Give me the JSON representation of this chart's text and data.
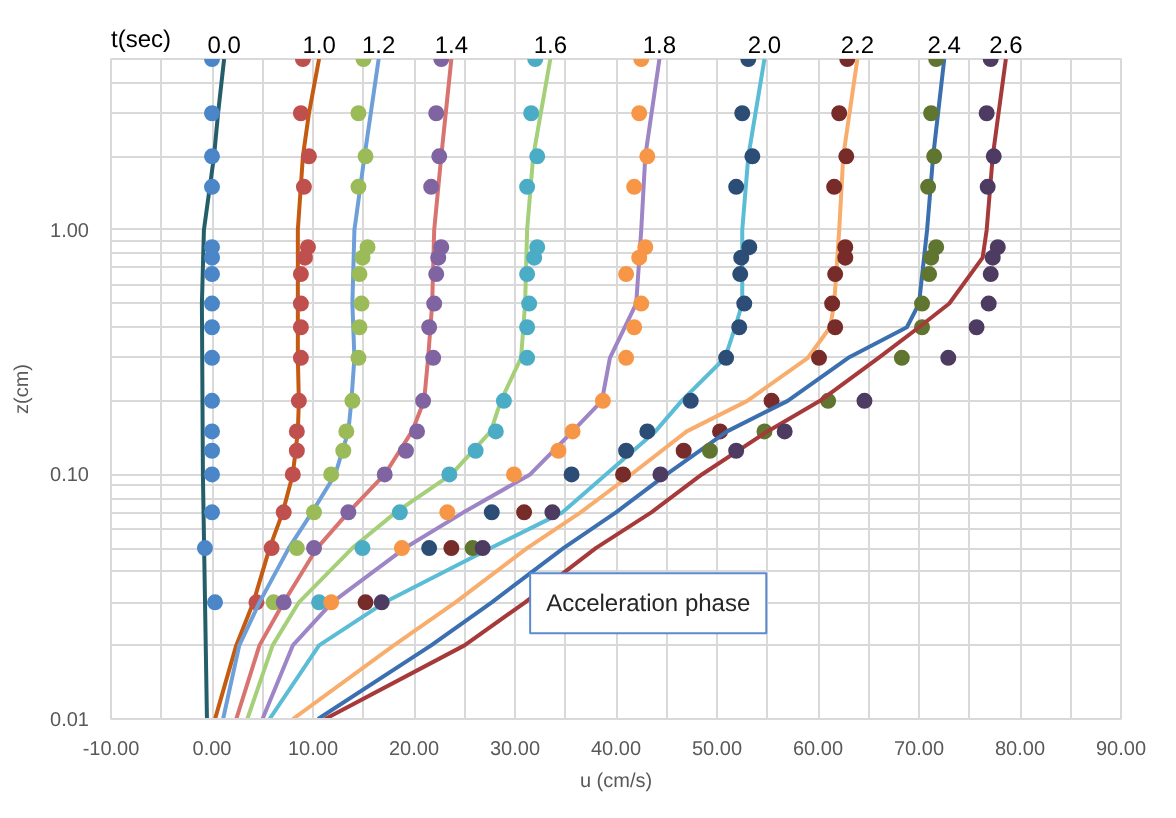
{
  "chart_data": {
    "type": "line",
    "xlabel": "u (cm/s)",
    "ylabel": "z(cm)",
    "log": "y",
    "grid": true,
    "legend": false,
    "annotations": [
      "t(sec)",
      "Acceleration phase"
    ],
    "xlim": [
      -10,
      90
    ],
    "xticks": [
      {
        "value": -10,
        "label": "-10.00"
      },
      {
        "value": -5,
        "label": null
      },
      {
        "value": 0,
        "label": "0.00"
      },
      {
        "value": 5,
        "label": null
      },
      {
        "value": 10,
        "label": "10.00"
      },
      {
        "value": 15,
        "label": null
      },
      {
        "value": 20,
        "label": "20.00"
      },
      {
        "value": 25,
        "label": null
      },
      {
        "value": 30,
        "label": "30.00"
      },
      {
        "value": 35,
        "label": null
      },
      {
        "value": 40,
        "label": "40.00"
      },
      {
        "value": 45,
        "label": null
      },
      {
        "value": 50,
        "label": "50.00"
      },
      {
        "value": 55,
        "label": null
      },
      {
        "value": 60,
        "label": "60.00"
      },
      {
        "value": 65,
        "label": null
      },
      {
        "value": 70,
        "label": "70.00"
      },
      {
        "value": 75,
        "label": null
      },
      {
        "value": 80,
        "label": "80.00"
      },
      {
        "value": 85,
        "label": null
      },
      {
        "value": 90,
        "label": "90.00"
      }
    ],
    "ylim": [
      0.01,
      5
    ],
    "yticks": [
      {
        "value": 0.01,
        "label": "0.01"
      },
      {
        "value": 0.02,
        "label": null
      },
      {
        "value": 0.03,
        "label": null
      },
      {
        "value": 0.04,
        "label": null
      },
      {
        "value": 0.05,
        "label": null
      },
      {
        "value": 0.06,
        "label": null
      },
      {
        "value": 0.07,
        "label": null
      },
      {
        "value": 0.08,
        "label": null
      },
      {
        "value": 0.09,
        "label": null
      },
      {
        "value": 0.1,
        "label": "0.10"
      },
      {
        "value": 0.2,
        "label": null
      },
      {
        "value": 0.3,
        "label": null
      },
      {
        "value": 0.4,
        "label": null
      },
      {
        "value": 0.5,
        "label": null
      },
      {
        "value": 0.6,
        "label": null
      },
      {
        "value": 0.7,
        "label": null
      },
      {
        "value": 0.8,
        "label": null
      },
      {
        "value": 0.9,
        "label": null
      },
      {
        "value": 1,
        "label": "1.00"
      },
      {
        "value": 2,
        "label": null
      },
      {
        "value": 3,
        "label": null
      },
      {
        "value": 4,
        "label": null
      },
      {
        "value": 5,
        "label": null
      }
    ],
    "series": [
      {
        "type": "line",
        "name": "0.0",
        "color": "#255e6b",
        "x": [
          1.2,
          0.6,
          0.2,
          -0.8,
          -1.0,
          -0.9,
          -0.5
        ],
        "values": [
          5,
          3,
          2,
          1,
          0.5,
          0.1,
          0.01
        ]
      },
      {
        "type": "scatter",
        "marker": "circle",
        "color": "#4a86c8",
        "x": [
          0,
          0,
          0,
          0,
          0,
          0,
          0,
          0,
          0,
          0,
          0,
          0,
          0,
          0,
          0,
          -0.7,
          0.3
        ],
        "values": [
          5,
          3,
          2,
          1.5,
          0.85,
          0.77,
          0.66,
          0.5,
          0.4,
          0.3,
          0.2,
          0.15,
          0.125,
          0.1,
          0.07,
          0.05,
          0.03
        ]
      },
      {
        "type": "line",
        "name": "1.0",
        "color": "#c55a11",
        "x": [
          10.6,
          9.6,
          9.0,
          8.5,
          8.5,
          8.6,
          8.5,
          8.0,
          7.0,
          5.7,
          4.1,
          2.4,
          0.3
        ],
        "values": [
          5,
          3,
          2,
          1,
          0.3,
          0.2,
          0.15,
          0.1,
          0.07,
          0.05,
          0.03,
          0.02,
          0.01
        ]
      },
      {
        "type": "scatter",
        "marker": "circle",
        "color": "#c0504d",
        "x": [
          9.0,
          8.8,
          9.6,
          9.1,
          9.5,
          9.2,
          8.8,
          8.8,
          8.8,
          8.8,
          8.6,
          8.4,
          8.4,
          8.0,
          7.1,
          5.9,
          4.4
        ],
        "values": [
          5,
          3,
          2,
          1.5,
          0.85,
          0.77,
          0.66,
          0.5,
          0.4,
          0.3,
          0.2,
          0.15,
          0.125,
          0.1,
          0.07,
          0.05,
          0.03
        ]
      },
      {
        "type": "line",
        "name": "1.2",
        "color": "#6f9fd8",
        "x": [
          16.5,
          15.1,
          14.1,
          13.9,
          14.1,
          13.8,
          13.5,
          12.2,
          9.9,
          7.6,
          4.7,
          2.7,
          1.1
        ],
        "values": [
          5,
          2,
          1,
          0.5,
          0.3,
          0.2,
          0.15,
          0.1,
          0.07,
          0.05,
          0.03,
          0.02,
          0.01
        ]
      },
      {
        "type": "scatter",
        "marker": "circle",
        "color": "#9bbb59",
        "x": [
          15.0,
          14.5,
          15.2,
          14.5,
          15.4,
          14.9,
          14.6,
          14.8,
          14.6,
          14.5,
          13.9,
          13.3,
          13.0,
          11.8,
          10.1,
          8.4,
          6.1
        ],
        "values": [
          5,
          3,
          2,
          1.5,
          0.85,
          0.77,
          0.66,
          0.5,
          0.4,
          0.3,
          0.2,
          0.15,
          0.125,
          0.1,
          0.07,
          0.05,
          0.03
        ]
      },
      {
        "type": "line",
        "name": "1.4",
        "color": "#d9736f",
        "x": [
          23.7,
          22.7,
          22.0,
          21.8,
          21.4,
          21.0,
          19.8,
          17.1,
          13.5,
          10.4,
          7.1,
          4.7,
          2.4
        ],
        "values": [
          5,
          2,
          1,
          0.5,
          0.3,
          0.2,
          0.15,
          0.1,
          0.07,
          0.05,
          0.03,
          0.02,
          0.01
        ]
      },
      {
        "type": "scatter",
        "marker": "circle",
        "color": "#8064a2",
        "x": [
          22.7,
          22.2,
          22.5,
          21.7,
          22.7,
          22.4,
          22.2,
          22.0,
          21.5,
          21.9,
          20.9,
          20.3,
          19.2,
          17.1,
          13.5,
          10.1,
          7.1
        ],
        "values": [
          5,
          3,
          2,
          1.5,
          0.85,
          0.77,
          0.66,
          0.5,
          0.4,
          0.3,
          0.2,
          0.15,
          0.125,
          0.1,
          0.07,
          0.05,
          0.03
        ]
      },
      {
        "type": "line",
        "name": "1.6",
        "color": "#a6cf7a",
        "x": [
          33.5,
          31.8,
          31.2,
          31.0,
          30.6,
          28.6,
          27.6,
          23.7,
          18.2,
          13.9,
          8.6,
          6.0,
          3.5
        ],
        "values": [
          5,
          2,
          1,
          0.5,
          0.3,
          0.2,
          0.15,
          0.1,
          0.07,
          0.05,
          0.03,
          0.02,
          0.01
        ]
      },
      {
        "type": "scatter",
        "marker": "circle",
        "color": "#4bacc6",
        "x": [
          32.0,
          31.6,
          32.2,
          31.2,
          32.2,
          31.9,
          31.2,
          31.4,
          31.2,
          31.2,
          28.9,
          28.1,
          26.1,
          23.5,
          18.6,
          14.9,
          10.6
        ],
        "values": [
          5,
          3,
          2,
          1.5,
          0.85,
          0.77,
          0.66,
          0.5,
          0.4,
          0.3,
          0.2,
          0.15,
          0.125,
          0.1,
          0.07,
          0.05,
          0.03
        ]
      },
      {
        "type": "line",
        "name": "1.8",
        "color": "#9d85c6",
        "x": [
          44.3,
          42.9,
          42.5,
          42.0,
          39.4,
          38.6,
          35.7,
          31.5,
          24.9,
          19.1,
          11.9,
          8.0,
          5.0
        ],
        "values": [
          5,
          2,
          1,
          0.5,
          0.3,
          0.2,
          0.15,
          0.1,
          0.07,
          0.05,
          0.03,
          0.02,
          0.01
        ]
      },
      {
        "type": "scatter",
        "marker": "circle",
        "color": "#f79646",
        "x": [
          42.5,
          42.3,
          43.1,
          41.8,
          42.9,
          42.3,
          41.0,
          42.5,
          41.8,
          41.0,
          38.7,
          35.7,
          34.3,
          29.9,
          23.3,
          18.8,
          11.8
        ],
        "values": [
          5,
          3,
          2,
          1.5,
          0.85,
          0.77,
          0.66,
          0.5,
          0.4,
          0.3,
          0.2,
          0.15,
          0.125,
          0.1,
          0.07,
          0.05,
          0.03
        ]
      },
      {
        "type": "line",
        "name": "2.0",
        "color": "#5bbcd6",
        "x": [
          54.7,
          53.1,
          52.5,
          52.5,
          51.8,
          50.8,
          46.5,
          43.9,
          39.0,
          34.7,
          27.6,
          17.1,
          10.6,
          5.7
        ],
        "values": [
          5,
          2,
          1,
          0.5,
          0.4,
          0.3,
          0.2,
          0.15,
          0.1,
          0.07,
          0.05,
          0.03,
          0.02,
          0.01
        ]
      },
      {
        "type": "scatter",
        "marker": "circle",
        "color": "#2c4d75",
        "x": [
          53.1,
          52.5,
          53.5,
          51.9,
          53.2,
          52.4,
          52.3,
          52.7,
          52.2,
          50.9,
          47.4,
          43.1,
          41.0,
          35.6,
          27.7,
          21.5,
          null
        ],
        "values": [
          5,
          3,
          2,
          1.5,
          0.85,
          0.77,
          0.66,
          0.5,
          0.4,
          0.3,
          0.2,
          0.15,
          0.125,
          0.1,
          0.07,
          0.05,
          null
        ]
      },
      {
        "type": "line",
        "name": "2.2",
        "color": "#f9ad6d",
        "x": [
          63.9,
          62.5,
          62.1,
          61.6,
          61.2,
          59.0,
          53.0,
          47.0,
          41.5,
          36.5,
          31.2,
          24.1,
          18.0,
          8.0
        ],
        "values": [
          5,
          2,
          1,
          0.5,
          0.4,
          0.3,
          0.2,
          0.15,
          0.1,
          0.07,
          0.05,
          0.03,
          0.02,
          0.01
        ]
      },
      {
        "type": "scatter",
        "marker": "circle",
        "color": "#772c2a",
        "x": [
          62.9,
          62.1,
          62.8,
          61.6,
          62.7,
          62.7,
          61.7,
          61.4,
          61.7,
          60.1,
          55.4,
          50.3,
          46.7,
          40.7,
          30.9,
          23.7,
          15.2
        ],
        "values": [
          5,
          3,
          2,
          1.5,
          0.85,
          0.77,
          0.66,
          0.5,
          0.4,
          0.3,
          0.2,
          0.15,
          0.125,
          0.1,
          0.07,
          0.05,
          0.03
        ]
      },
      {
        "type": "line",
        "name": "2.4",
        "color": "#3b6fb0",
        "x": [
          72.5,
          71.4,
          70.8,
          70.0,
          68.8,
          63.0,
          57.0,
          51.0,
          45.0,
          40.0,
          34.8,
          27.7,
          21.7,
          10.5
        ],
        "values": [
          5,
          2,
          1,
          0.5,
          0.4,
          0.3,
          0.2,
          0.15,
          0.1,
          0.07,
          0.05,
          0.03,
          0.02,
          0.01
        ]
      },
      {
        "type": "scatter",
        "marker": "circle",
        "color": "#5f7530",
        "x": [
          71.7,
          71.2,
          71.5,
          70.9,
          71.7,
          71.2,
          71.0,
          70.3,
          70.3,
          68.3,
          61.0,
          54.7,
          49.3,
          null,
          null,
          25.8
        ],
        "values": [
          5,
          3,
          2,
          1.5,
          0.85,
          0.77,
          0.66,
          0.5,
          0.4,
          0.3,
          0.2,
          0.15,
          0.125,
          null,
          null,
          0.05
        ]
      },
      {
        "type": "line",
        "name": "2.6",
        "color": "#a63a3a",
        "x": [
          78.6,
          77.3,
          76.7,
          76.3,
          73.0,
          70.0,
          66.0,
          60.2,
          55.0,
          48.5,
          43.5,
          38.0,
          31.0,
          25.0,
          11.2
        ],
        "values": [
          5,
          2,
          1,
          0.77,
          0.5,
          0.4,
          0.3,
          0.2,
          0.15,
          0.1,
          0.07,
          0.05,
          0.03,
          0.02,
          0.01
        ]
      },
      {
        "type": "scatter",
        "marker": "circle",
        "color": "#4d3b62",
        "x": [
          77.1,
          76.7,
          77.4,
          76.8,
          77.8,
          77.3,
          77.1,
          76.9,
          75.7,
          72.9,
          64.6,
          56.7,
          51.9,
          44.4,
          33.7,
          26.8,
          16.8
        ],
        "values": [
          5,
          3,
          2,
          1.5,
          0.85,
          0.77,
          0.66,
          0.5,
          0.4,
          0.3,
          0.2,
          0.15,
          0.125,
          0.1,
          0.07,
          0.05,
          0.03
        ]
      }
    ]
  }
}
